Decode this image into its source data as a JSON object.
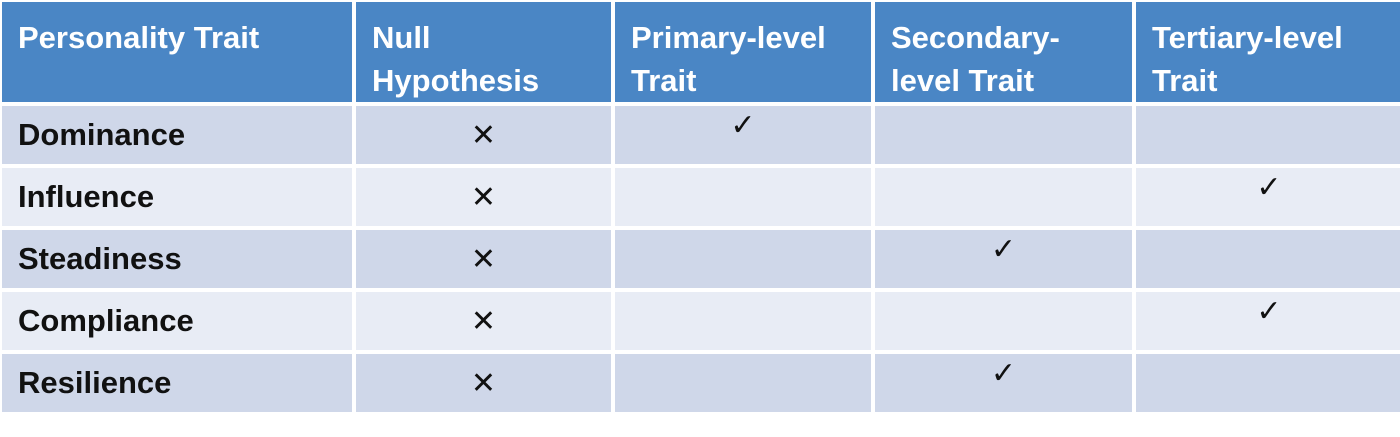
{
  "table": {
    "headers": [
      "Personality Trait",
      "Null Hypothesis",
      "Primary-level Trait",
      "Secondary-level Trait",
      "Tertiary-level Trait"
    ],
    "rows": [
      {
        "trait": "Dominance",
        "cells": [
          "✕",
          "✓",
          "",
          ""
        ]
      },
      {
        "trait": "Influence",
        "cells": [
          "✕",
          "",
          "",
          "✓"
        ]
      },
      {
        "trait": "Steadiness",
        "cells": [
          "✕",
          "",
          "✓",
          ""
        ]
      },
      {
        "trait": "Compliance",
        "cells": [
          "✕",
          "",
          "",
          "✓"
        ]
      },
      {
        "trait": "Resilience",
        "cells": [
          "✕",
          "",
          "✓",
          ""
        ]
      }
    ]
  },
  "colors": {
    "header_bg": "#4a86c5",
    "row_dark": "#cfd7e9",
    "row_light": "#e8ecf5"
  }
}
